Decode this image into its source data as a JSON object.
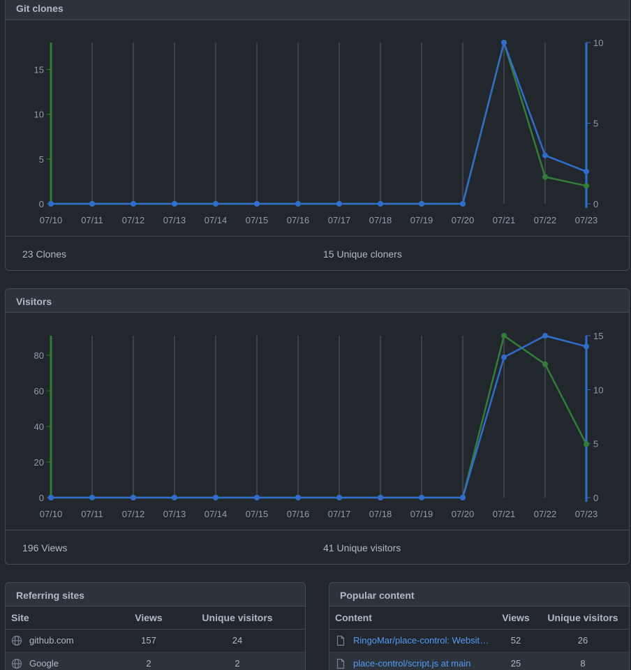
{
  "clones": {
    "title": "Git clones",
    "total_label": "23 Clones",
    "unique_label": "15 Unique cloners"
  },
  "visitors": {
    "title": "Visitors",
    "total_label": "196 Views",
    "unique_label": "41 Unique visitors"
  },
  "colors": {
    "total": "#347d39",
    "unique": "#316dca",
    "grid": "#545d68"
  },
  "chart_data": [
    {
      "type": "line",
      "categories": [
        "07/10",
        "07/11",
        "07/12",
        "07/13",
        "07/14",
        "07/15",
        "07/16",
        "07/17",
        "07/18",
        "07/19",
        "07/20",
        "07/21",
        "07/22",
        "07/23"
      ],
      "left_ticks": [
        "0",
        "5",
        "10",
        "15"
      ],
      "right_ticks": [
        "0",
        "5",
        "10"
      ],
      "ylim_left": [
        0,
        18
      ],
      "ylim_right": [
        0,
        10
      ],
      "series": [
        {
          "axis": "left",
          "values": [
            0,
            0,
            0,
            0,
            0,
            0,
            0,
            0,
            0,
            0,
            0,
            18,
            3,
            2
          ]
        },
        {
          "axis": "right",
          "values": [
            0,
            0,
            0,
            0,
            0,
            0,
            0,
            0,
            0,
            0,
            0,
            10,
            3,
            2
          ]
        }
      ]
    },
    {
      "type": "line",
      "categories": [
        "07/10",
        "07/11",
        "07/12",
        "07/13",
        "07/14",
        "07/15",
        "07/16",
        "07/17",
        "07/18",
        "07/19",
        "07/20",
        "07/21",
        "07/22",
        "07/23"
      ],
      "left_ticks": [
        "0",
        "20",
        "40",
        "60",
        "80"
      ],
      "right_ticks": [
        "0",
        "5",
        "10",
        "15"
      ],
      "ylim_left": [
        0,
        91
      ],
      "ylim_right": [
        0,
        15
      ],
      "series": [
        {
          "axis": "left",
          "values": [
            0,
            0,
            0,
            0,
            0,
            0,
            0,
            0,
            0,
            0,
            0,
            91,
            75,
            30
          ]
        },
        {
          "axis": "right",
          "values": [
            0,
            0,
            0,
            0,
            0,
            0,
            0,
            0,
            0,
            0,
            0,
            13,
            15,
            14
          ]
        }
      ]
    }
  ],
  "referrers": {
    "title": "Referring sites",
    "headers": [
      "Site",
      "Views",
      "Unique visitors"
    ],
    "rows": [
      {
        "icon": "globe-icon",
        "site": "github.com",
        "views": "157",
        "unique": "24"
      },
      {
        "icon": "globe-icon",
        "site": "Google",
        "views": "2",
        "unique": "2"
      }
    ]
  },
  "popular": {
    "title": "Popular content",
    "headers": [
      "Content",
      "Views",
      "Unique visitors"
    ],
    "rows": [
      {
        "icon": "file-icon",
        "content": "RingoMar/place-control: Website t…",
        "views": "52",
        "unique": "26"
      },
      {
        "icon": "file-icon",
        "content": "place-control/script.js at main",
        "views": "25",
        "unique": "8"
      }
    ]
  }
}
